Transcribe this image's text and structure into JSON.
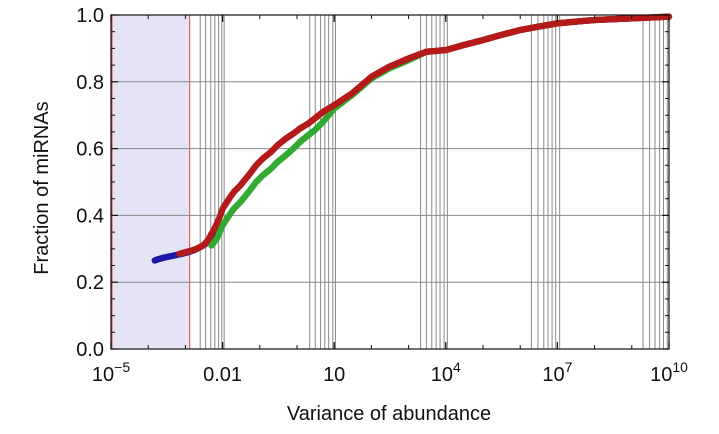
{
  "chart_data": {
    "type": "scatter",
    "title": "",
    "xlabel": "Variance of abundance",
    "ylabel": "Fraction of miRNAs",
    "x_scale": "log",
    "xlim": [
      1e-05,
      10000000000
    ],
    "ylim": [
      0.0,
      1.0
    ],
    "x_ticks": [
      {
        "value": 1e-05,
        "base": "10",
        "exp": "−5",
        "plain": ""
      },
      {
        "value": 0.01,
        "base": "",
        "exp": "",
        "plain": "0.01"
      },
      {
        "value": 10,
        "base": "",
        "exp": "",
        "plain": "10"
      },
      {
        "value": 10000,
        "base": "10",
        "exp": "4",
        "plain": ""
      },
      {
        "value": 10000000,
        "base": "10",
        "exp": "7",
        "plain": ""
      },
      {
        "value": 10000000000,
        "base": "10",
        "exp": "10",
        "plain": ""
      }
    ],
    "y_ticks": [
      "0.0",
      "0.2",
      "0.4",
      "0.6",
      "0.8",
      "1.0"
    ],
    "y_tick_values": [
      0.0,
      0.2,
      0.4,
      0.6,
      0.8,
      1.0
    ],
    "grid": true,
    "vertical_lines": [
      0.0025,
      0.0035,
      0.0048,
      0.0062,
      0.0078,
      0.0095,
      0.011,
      2.2,
      3.1,
      4.3,
      5.6,
      7.1,
      9.2,
      10.8,
      2100,
      3000,
      4200,
      5500,
      7000,
      9000,
      11000,
      2000000,
      3000000,
      4300000,
      5600000,
      7200000,
      9000000,
      11500000,
      2000000000,
      3000000000,
      4200000000,
      5600000000,
      7100000000,
      9000000000
    ],
    "highlight_region": {
      "x": [
        1e-05,
        0.0013
      ],
      "y": [
        0.0,
        1.0
      ],
      "fill": "#e4e4f5",
      "stroke": "#e04848"
    },
    "series": [
      {
        "color": "#1a1aa6",
        "x": [
          0.00015,
          0.0002,
          0.0003,
          0.0005,
          0.0008,
          0.0012,
          0.0018,
          0.0025,
          0.0035,
          0.005,
          0.008
        ],
        "y": [
          0.265,
          0.27,
          0.275,
          0.28,
          0.285,
          0.29,
          0.297,
          0.305,
          0.315,
          0.33,
          0.37
        ]
      },
      {
        "color": "#33aa33",
        "x": [
          0.005,
          0.007,
          0.01,
          0.015,
          0.02,
          0.03,
          0.05,
          0.08,
          0.12,
          0.2,
          0.3,
          0.5,
          0.8,
          1.2,
          2,
          3,
          5,
          10,
          30,
          100,
          300,
          1000,
          3000,
          10000,
          30000,
          100000,
          300000,
          1000000,
          3000000,
          10000000,
          30000000,
          100000000,
          1000000000,
          10000000000
        ],
        "y": [
          0.31,
          0.33,
          0.37,
          0.4,
          0.42,
          0.44,
          0.47,
          0.5,
          0.52,
          0.54,
          0.56,
          0.58,
          0.6,
          0.62,
          0.64,
          0.655,
          0.68,
          0.72,
          0.76,
          0.81,
          0.84,
          0.865,
          0.89,
          0.895,
          0.91,
          0.925,
          0.94,
          0.955,
          0.965,
          0.975,
          0.98,
          0.985,
          0.99,
          0.995
        ]
      },
      {
        "color": "#b51a1a",
        "x": [
          0.0007,
          0.001,
          0.0015,
          0.002,
          0.003,
          0.004,
          0.006,
          0.008,
          0.01,
          0.015,
          0.02,
          0.03,
          0.05,
          0.08,
          0.12,
          0.2,
          0.3,
          0.5,
          0.8,
          1.2,
          2,
          3,
          5,
          10,
          30,
          100,
          300,
          1000,
          3000,
          10000,
          30000,
          100000,
          300000,
          1000000,
          3000000,
          10000000,
          30000000,
          100000000,
          1000000000,
          10000000000
        ],
        "y": [
          0.285,
          0.29,
          0.295,
          0.3,
          0.31,
          0.325,
          0.36,
          0.39,
          0.42,
          0.45,
          0.47,
          0.49,
          0.52,
          0.55,
          0.57,
          0.59,
          0.61,
          0.63,
          0.645,
          0.66,
          0.675,
          0.69,
          0.71,
          0.73,
          0.765,
          0.815,
          0.845,
          0.87,
          0.89,
          0.895,
          0.91,
          0.925,
          0.94,
          0.955,
          0.965,
          0.975,
          0.98,
          0.985,
          0.99,
          0.995
        ]
      }
    ]
  }
}
